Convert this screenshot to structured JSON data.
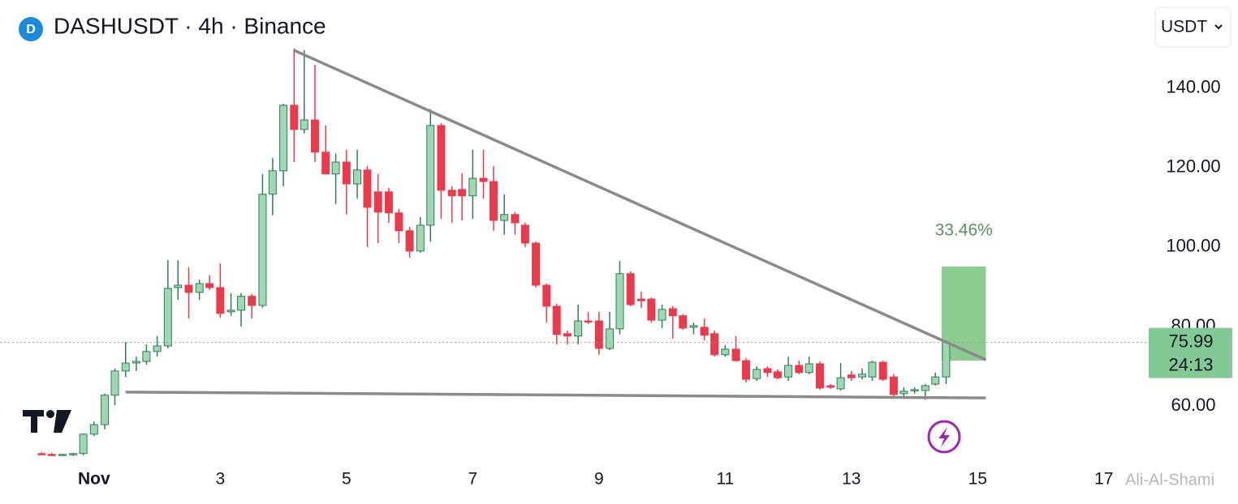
{
  "chart_data": {
    "type": "candlestick",
    "title": "DASHUSDT · 4h · Binance",
    "currency": "USDT",
    "x": [
      0.17,
      0.33,
      0.5,
      0.67,
      0.83,
      1,
      1.17,
      1.33,
      1.5,
      1.67,
      1.83,
      2,
      2.17,
      2.33,
      2.5,
      2.67,
      2.83,
      3,
      3.17,
      3.33,
      3.5,
      3.67,
      3.83,
      4,
      4.17,
      4.33,
      4.5,
      4.67,
      4.83,
      5,
      5.17,
      5.33,
      5.5,
      5.67,
      5.83,
      6,
      6.17,
      6.33,
      6.5,
      6.67,
      6.83,
      7,
      7.17,
      7.33,
      7.5,
      7.67,
      7.83,
      8,
      8.17,
      8.33,
      8.5,
      8.67,
      8.83,
      9,
      9.17,
      9.33,
      9.5,
      9.67,
      9.83,
      10,
      10.17,
      10.33,
      10.5,
      10.67,
      10.83,
      11,
      11.17,
      11.33,
      11.5,
      11.67,
      11.83,
      12,
      12.17,
      12.33,
      12.5,
      12.67,
      12.83,
      13,
      13.17,
      13.33,
      13.5,
      13.67,
      13.83,
      14,
      14.17,
      14.33,
      14.5
    ],
    "open": [
      48.0,
      47.8,
      47.6,
      47.8,
      48.0,
      52.9,
      55.3,
      62.7,
      68.8,
      70.8,
      71.2,
      73.7,
      75.1,
      89.8,
      90.4,
      88.6,
      90.8,
      89.8,
      83.7,
      84.1,
      87.6,
      85.3,
      113.3,
      119.2,
      135.7,
      129.6,
      132.0,
      123.9,
      118.4,
      121.4,
      115.9,
      119.4,
      113.9,
      113.9,
      108.6,
      104.1,
      99.0,
      105.5,
      130.6,
      114.3,
      114.5,
      112.9,
      117.3,
      116.5,
      106.7,
      108.2,
      105.5,
      101.0,
      90.4,
      85.1,
      78.2,
      77.6,
      81.4,
      81.4,
      74.5,
      79.4,
      93.3,
      86.9,
      86.9,
      81.6,
      84.5,
      82.7,
      79.8,
      79.8,
      78.2,
      72.9,
      74.3,
      71.4,
      66.9,
      69.4,
      68.6,
      67.3,
      70.2,
      68.4,
      70.6,
      65.1,
      64.3,
      67.8,
      67.3,
      67.3,
      71.0,
      67.3,
      63.1,
      63.9,
      63.9,
      65.5,
      67.3
    ],
    "high": [
      48.4,
      48.2,
      48.0,
      48.2,
      53.1,
      56.1,
      63.1,
      69.4,
      76.1,
      72.4,
      75.5,
      77.6,
      96.7,
      96.7,
      94.9,
      91.8,
      92.9,
      95.9,
      88.4,
      88.4,
      88.2,
      118.4,
      122.4,
      136.1,
      150.0,
      149.6,
      145.9,
      130.6,
      123.5,
      124.5,
      124.5,
      120.4,
      118.4,
      114.9,
      109.6,
      105.1,
      107.6,
      134.7,
      131.2,
      115.3,
      118.6,
      124.5,
      124.5,
      120.4,
      113.3,
      108.8,
      106.1,
      101.4,
      90.8,
      85.7,
      79.0,
      85.5,
      83.7,
      83.7,
      83.7,
      96.5,
      93.9,
      88.8,
      87.3,
      85.5,
      85.1,
      83.1,
      81.0,
      82.0,
      79.0,
      75.3,
      77.6,
      72.0,
      70.0,
      70.0,
      69.2,
      72.4,
      71.4,
      72.4,
      71.2,
      65.5,
      70.8,
      68.8,
      69.4,
      71.4,
      71.4,
      68.0,
      64.7,
      64.7,
      65.5,
      68.4,
      76.5
    ],
    "low": [
      47.6,
      47.4,
      47.4,
      47.4,
      47.6,
      52.4,
      54.1,
      60.2,
      67.3,
      68.8,
      70.4,
      72.4,
      74.5,
      86.7,
      82.0,
      86.7,
      89.2,
      82.2,
      82.7,
      80.0,
      82.0,
      84.7,
      108.0,
      115.3,
      121.4,
      128.6,
      121.4,
      118.4,
      110.8,
      108.2,
      112.2,
      100.0,
      101.0,
      106.1,
      101.0,
      97.3,
      98.6,
      101.4,
      107.1,
      106.1,
      106.7,
      107.1,
      112.2,
      104.1,
      103.1,
      103.1,
      100.0,
      89.8,
      81.0,
      75.5,
      75.5,
      75.5,
      80.6,
      72.9,
      74.1,
      78.0,
      85.1,
      84.7,
      81.0,
      79.6,
      76.9,
      79.2,
      78.0,
      76.5,
      72.4,
      72.4,
      71.2,
      65.9,
      66.3,
      67.3,
      66.7,
      66.3,
      68.0,
      68.0,
      64.1,
      64.3,
      63.9,
      66.3,
      66.7,
      66.3,
      66.3,
      61.8,
      61.8,
      63.1,
      61.6,
      65.1,
      65.5
    ],
    "close": [
      47.8,
      47.6,
      47.8,
      48.0,
      52.9,
      55.3,
      62.7,
      68.8,
      70.8,
      71.2,
      73.7,
      75.1,
      89.6,
      90.4,
      88.6,
      90.8,
      89.8,
      83.3,
      84.1,
      87.6,
      85.3,
      113.3,
      119.2,
      135.7,
      129.6,
      132.0,
      123.9,
      118.4,
      121.4,
      115.9,
      119.4,
      110.0,
      108.8,
      108.6,
      104.1,
      99.0,
      105.5,
      130.6,
      114.3,
      112.9,
      112.9,
      117.3,
      116.5,
      106.7,
      108.2,
      106.1,
      101.0,
      90.4,
      85.1,
      78.0,
      77.6,
      81.4,
      81.2,
      74.5,
      79.4,
      93.3,
      85.5,
      86.5,
      81.6,
      84.3,
      82.7,
      79.6,
      80.2,
      77.8,
      72.9,
      74.3,
      71.4,
      66.7,
      69.2,
      68.4,
      67.1,
      70.2,
      68.4,
      70.6,
      64.5,
      64.7,
      67.1,
      67.1,
      68.0,
      71.0,
      66.7,
      62.9,
      63.7,
      64.1,
      65.1,
      67.3,
      75.99
    ],
    "up_color": "#9fd8b0",
    "up_border": "#2f7d5a",
    "down_color": "#ea3a4c",
    "xlim": [
      -0.49,
      17.71
    ],
    "xticks": [
      {
        "value": 1,
        "label": "Nov"
      },
      3,
      5,
      7,
      9,
      11,
      13,
      15,
      17
    ],
    "ylim": [
      44.9,
      162.2
    ],
    "yticks": [
      {
        "value": 60,
        "label": "60.00"
      },
      {
        "value": 80,
        "label": "80.00"
      },
      {
        "value": 100,
        "label": "100.00"
      },
      {
        "value": 120,
        "label": "120.00"
      },
      {
        "value": 140,
        "label": "140.00"
      }
    ],
    "last_price": 75.99,
    "countdown": "24:13",
    "trendlines": [
      {
        "x": [
          4.16,
          15.13
        ],
        "y": [
          149.6,
          71.6
        ]
      },
      {
        "x": [
          1.5,
          15.13
        ],
        "y": [
          63.5,
          62.0
        ]
      }
    ],
    "projection": {
      "x": [
        14.43,
        15.13
      ],
      "y": [
        71.4,
        95.1
      ],
      "label": "33.46%",
      "color": "#81c784"
    },
    "watermark": "Ali-Al-Shami"
  }
}
